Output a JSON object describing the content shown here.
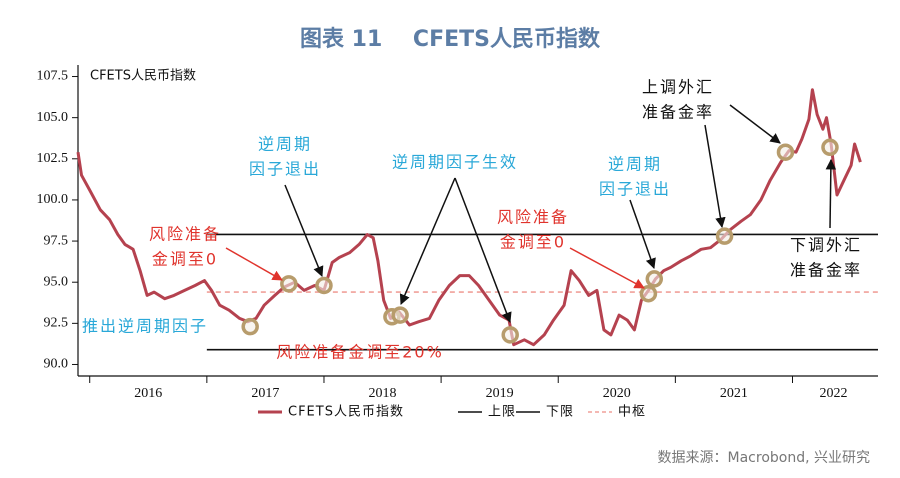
{
  "chart_data": {
    "type": "line",
    "title": "图表 11    CFETS人民币指数",
    "inner_label": "CFETS人民币指数",
    "source": "数据来源：Macrobond, 兴业研究",
    "xlim": [
      2015.9,
      2022.73
    ],
    "xtick_marks": [
      2016,
      2017,
      2018,
      2019,
      2020,
      2021,
      2022
    ],
    "xticks": [
      {
        "value": 2016.5,
        "label": "2016"
      },
      {
        "value": 2017.5,
        "label": "2017"
      },
      {
        "value": 2018.5,
        "label": "2018"
      },
      {
        "value": 2019.5,
        "label": "2019"
      },
      {
        "value": 2020.5,
        "label": "2020"
      },
      {
        "value": 2021.5,
        "label": "2021"
      },
      {
        "value": 2022.35,
        "label": "2022"
      }
    ],
    "ylim": [
      89.3,
      108.2
    ],
    "yticks": [
      {
        "value": 90,
        "label": "90.0"
      },
      92.5,
      {
        "value": 95,
        "label": "95.0"
      },
      97.5,
      {
        "value": 100,
        "label": "100.0"
      },
      102.5,
      {
        "value": 105,
        "label": "105.0"
      },
      107.5
    ],
    "grid": false,
    "x": [
      2015.9,
      2015.93,
      2016.0,
      2016.09,
      2016.17,
      2016.24,
      2016.3,
      2016.37,
      2016.43,
      2016.49,
      2016.55,
      2016.64,
      2016.72,
      2016.81,
      2016.9,
      2016.98,
      2017.04,
      2017.11,
      2017.19,
      2017.28,
      2017.35,
      2017.42,
      2017.49,
      2017.58,
      2017.66,
      2017.75,
      2017.83,
      2017.92,
      2018.0,
      2018.07,
      2018.13,
      2018.22,
      2018.3,
      2018.37,
      2018.42,
      2018.46,
      2018.51,
      2018.57,
      2018.64,
      2018.73,
      2018.81,
      2018.9,
      2018.98,
      2019.07,
      2019.16,
      2019.24,
      2019.32,
      2019.41,
      2019.5,
      2019.58,
      2019.62,
      2019.71,
      2019.79,
      2019.88,
      2019.96,
      2020.05,
      2020.11,
      2020.18,
      2020.26,
      2020.33,
      2020.39,
      2020.45,
      2020.52,
      2020.59,
      2020.65,
      2020.71,
      2020.77,
      2020.83,
      2020.9,
      2020.96,
      2021.05,
      2021.13,
      2021.22,
      2021.3,
      2021.39,
      2021.47,
      2021.56,
      2021.64,
      2021.73,
      2021.81,
      2021.9,
      2021.97,
      2022.03,
      2022.08,
      2022.14,
      2022.17,
      2022.21,
      2022.26,
      2022.29,
      2022.33,
      2022.38,
      2022.44,
      2022.5,
      2022.53,
      2022.58
    ],
    "series": [
      {
        "name": "CFETS人民币指数",
        "color": "#b5424f",
        "values": [
          102.9,
          101.5,
          100.6,
          99.4,
          98.8,
          97.9,
          97.3,
          97.0,
          95.7,
          94.2,
          94.4,
          94.0,
          94.2,
          94.5,
          94.8,
          95.1,
          94.5,
          93.6,
          93.3,
          92.8,
          92.6,
          92.8,
          93.6,
          94.2,
          94.7,
          95.0,
          94.5,
          94.8,
          94.5,
          96.2,
          96.5,
          96.8,
          97.3,
          97.9,
          97.7,
          96.3,
          93.9,
          92.8,
          93.2,
          92.4,
          92.6,
          92.8,
          93.9,
          94.8,
          95.4,
          95.4,
          94.8,
          93.9,
          93.0,
          92.7,
          91.2,
          91.5,
          91.2,
          91.8,
          92.7,
          93.6,
          95.7,
          95.1,
          94.2,
          94.5,
          92.1,
          91.8,
          93.0,
          92.7,
          92.1,
          93.9,
          94.5,
          95.2,
          95.7,
          95.9,
          96.3,
          96.6,
          97.0,
          97.1,
          97.6,
          98.2,
          98.7,
          99.1,
          100.0,
          101.2,
          102.3,
          103.0,
          102.9,
          103.7,
          104.9,
          106.7,
          105.2,
          104.3,
          105.0,
          103.4,
          100.3,
          101.2,
          102.1,
          103.4,
          102.3
        ]
      }
    ],
    "reference_lines": [
      {
        "name": "上限",
        "value": 97.9,
        "color": "#111111",
        "dashed": false,
        "xrange": [
          2017.0,
          2022.73
        ]
      },
      {
        "name": "下限",
        "value": 90.9,
        "color": "#111111",
        "dashed": false,
        "xrange": [
          2017.0,
          2022.73
        ]
      },
      {
        "name": "中枢",
        "value": 94.4,
        "color": "#f0a09a",
        "dashed": true,
        "xrange": [
          2017.0,
          2022.73
        ]
      }
    ],
    "markers": {
      "color": "#b79c6c",
      "x": [
        2017.37,
        2017.7,
        2018.0,
        2018.58,
        2018.65,
        2019.59,
        2020.77,
        2020.82,
        2021.42,
        2021.94,
        2022.32
      ],
      "values": [
        92.3,
        94.9,
        94.8,
        92.9,
        93.0,
        91.8,
        94.3,
        95.2,
        97.8,
        102.9,
        103.2
      ]
    },
    "annotations": [
      {
        "lines": [
          "风险准备",
          "金调至0"
        ],
        "color": "#e0342d"
      },
      {
        "lines": [
          "逆周期",
          "因子退出"
        ],
        "color": "#2aa8d8"
      },
      {
        "lines": [
          "推出逆周期因子"
        ],
        "color": "#2aa8d8"
      },
      {
        "lines": [
          "逆周期因子生效"
        ],
        "color": "#2aa8d8"
      },
      {
        "lines": [
          "逆周期",
          "因子退出"
        ],
        "color": "#2aa8d8"
      },
      {
        "lines": [
          "风险准备",
          "金调至0"
        ],
        "color": "#e0342d"
      },
      {
        "lines": [
          "风险准备金调至20%"
        ],
        "color": "#e0342d"
      },
      {
        "lines": [
          "上调外汇",
          "准备金率"
        ],
        "color": "#111111"
      },
      {
        "lines": [
          "下调外汇",
          "准备金率"
        ],
        "color": "#111111"
      }
    ]
  }
}
